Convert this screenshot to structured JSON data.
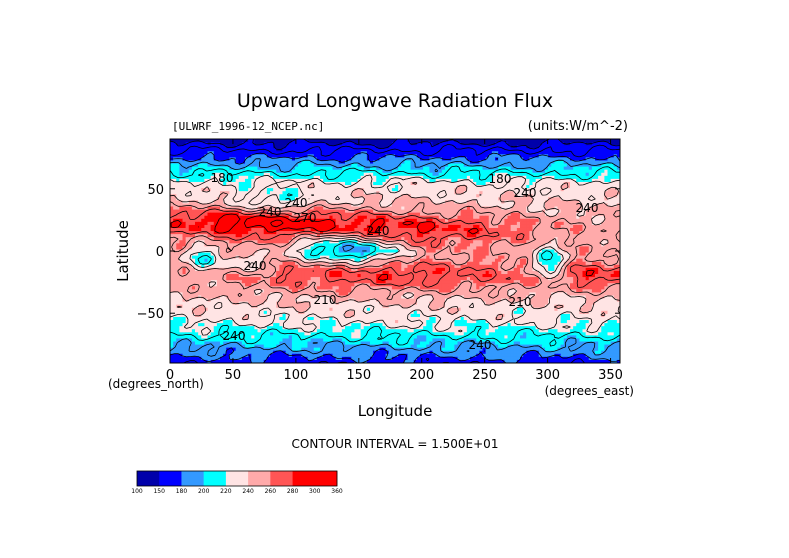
{
  "chart_data": {
    "type": "heatmap",
    "title": "Upward Longwave Radiation Flux",
    "file_label": "[ULWRF_1996-12_NCEP.nc]",
    "units_label": "(units:W/m^-2)",
    "xlabel": "Longitude",
    "ylabel": "Latitude",
    "x_unit_label": "(degrees_east)",
    "y_unit_label": "(degrees_north)",
    "xlim": [
      0,
      357.5
    ],
    "ylim": [
      -90,
      90
    ],
    "x_ticks": [
      0,
      50,
      100,
      150,
      200,
      250,
      300,
      350
    ],
    "y_ticks": [
      50,
      0,
      -50
    ],
    "x_tick_labels": [
      "0",
      "50",
      "100",
      "150",
      "200",
      "250",
      "300",
      "350"
    ],
    "y_tick_labels": [
      "50",
      "0",
      "−50"
    ],
    "contour_interval_text": "CONTOUR INTERVAL = 1.500E+01",
    "contour_labels": [
      "180",
      "180",
      "240",
      "240",
      "270",
      "240",
      "240",
      "240",
      "240",
      "210",
      "210",
      "240",
      "240"
    ],
    "colorbar": {
      "levels": [
        "100",
        "150",
        "180",
        "200",
        "220",
        "240",
        "260",
        "280",
        "300",
        "360"
      ],
      "colors": [
        "#0000aa",
        "#0000ff",
        "#3399ff",
        "#00ffff",
        "#ffe4e4",
        "#ffaaaa",
        "#ff5555",
        "#ff0000",
        "#ff0000"
      ]
    }
  }
}
